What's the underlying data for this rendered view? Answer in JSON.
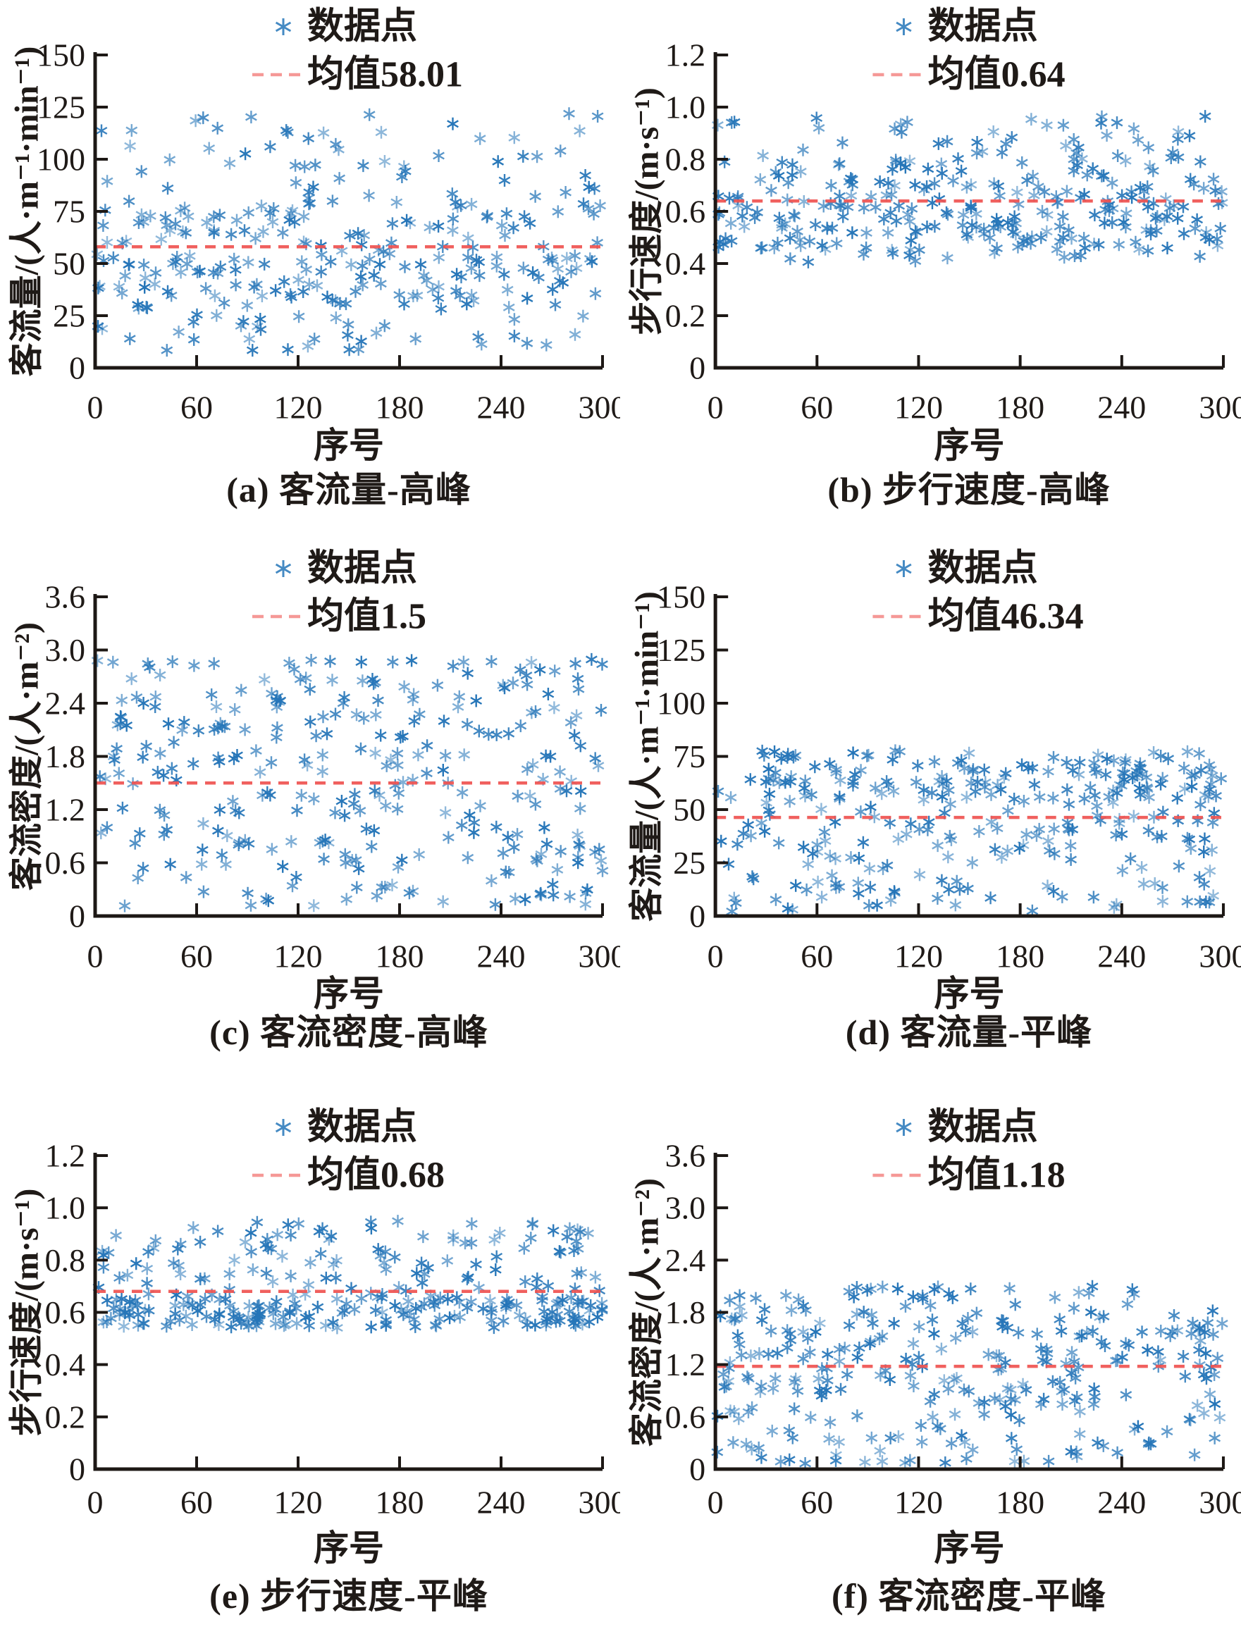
{
  "style": {
    "point_color": "#2575b8",
    "mean_line_color": "#ef5350",
    "axis_color": "#1d1815",
    "text_color": "#1f1a17",
    "background": "#ffffff"
  },
  "chart_data": [
    {
      "id": "a",
      "type": "scatter",
      "caption": "(a) 客流量-高峰",
      "xlabel": "序号",
      "ylabel": "客流量/(人·m⁻¹·min⁻¹)",
      "xlim": [
        0,
        300
      ],
      "ylim": [
        0,
        150
      ],
      "x_ticks": [
        0,
        60,
        120,
        180,
        240,
        300
      ],
      "y_ticks": [
        0,
        25,
        50,
        75,
        100,
        125,
        150
      ],
      "y_tick_labels": [
        "0",
        "25",
        "50",
        "75",
        "100",
        "125",
        "150"
      ],
      "legend": {
        "points_label": "数据点",
        "mean_label": "均值58.01"
      },
      "legend_position": "top-right-inside",
      "grid": false,
      "mean": 58.01,
      "n_points": 300,
      "x_distribution": {
        "kind": "uniform",
        "range": [
          1,
          300
        ]
      },
      "y_distribution_bands": [
        {
          "range": [
            30,
            80
          ],
          "weight": 0.4
        },
        {
          "range": [
            8,
            55
          ],
          "weight": 0.3
        },
        {
          "range": [
            60,
            122
          ],
          "weight": 0.3
        }
      ],
      "seed": 11
    },
    {
      "id": "b",
      "type": "scatter",
      "caption": "(b) 步行速度-高峰",
      "xlabel": "序号",
      "ylabel": "步行速度/(m·s⁻¹)",
      "xlim": [
        0,
        300
      ],
      "ylim": [
        0,
        1.2
      ],
      "x_ticks": [
        0,
        60,
        120,
        180,
        240,
        300
      ],
      "y_ticks": [
        0,
        0.2,
        0.4,
        0.6,
        0.8,
        1.0,
        1.2
      ],
      "y_tick_labels": [
        "0",
        "0.2",
        "0.4",
        "0.6",
        "0.8",
        "1.0",
        "1.2"
      ],
      "legend": {
        "points_label": "数据点",
        "mean_label": "均值0.64"
      },
      "legend_position": "top-right-inside",
      "grid": false,
      "mean": 0.64,
      "n_points": 300,
      "x_distribution": {
        "kind": "uniform",
        "range": [
          1,
          300
        ]
      },
      "y_distribution_bands": [
        {
          "range": [
            0.45,
            0.68
          ],
          "weight": 0.6
        },
        {
          "range": [
            0.68,
            0.85
          ],
          "weight": 0.25
        },
        {
          "range": [
            0.85,
            0.97
          ],
          "weight": 0.1
        },
        {
          "range": [
            0.4,
            0.45
          ],
          "weight": 0.05
        }
      ],
      "seed": 22
    },
    {
      "id": "c",
      "type": "scatter",
      "caption": "(c) 客流密度-高峰",
      "xlabel": "序号",
      "ylabel": "客流密度/(人·m⁻²)",
      "xlim": [
        0,
        300
      ],
      "ylim": [
        0,
        3.6
      ],
      "x_ticks": [
        0,
        60,
        120,
        180,
        240,
        300
      ],
      "y_ticks": [
        0,
        0.6,
        1.2,
        1.8,
        2.4,
        3.0,
        3.6
      ],
      "y_tick_labels": [
        "0",
        "0.6",
        "1.2",
        "1.8",
        "2.4",
        "3.0",
        "3.6"
      ],
      "legend": {
        "points_label": "数据点",
        "mean_label": "均值1.5"
      },
      "legend_position": "top-right-inside",
      "grid": false,
      "mean": 1.5,
      "n_points": 300,
      "x_distribution": {
        "kind": "uniform",
        "range": [
          1,
          300
        ]
      },
      "y_distribution_bands": [
        {
          "range": [
            0.1,
            2.9
          ],
          "weight": 1.0
        }
      ],
      "seed": 33
    },
    {
      "id": "d",
      "type": "scatter",
      "caption": "(d) 客流量-平峰",
      "xlabel": "序号",
      "ylabel": "客流量/(人·m⁻¹·min⁻¹)",
      "xlim": [
        0,
        300
      ],
      "ylim": [
        0,
        150
      ],
      "x_ticks": [
        0,
        60,
        120,
        180,
        240,
        300
      ],
      "y_ticks": [
        0,
        25,
        50,
        75,
        100,
        125,
        150
      ],
      "y_tick_labels": [
        "0",
        "25",
        "50",
        "75",
        "100",
        "125",
        "150"
      ],
      "legend": {
        "points_label": "数据点",
        "mean_label": "均值46.34"
      },
      "legend_position": "top-right-inside",
      "grid": false,
      "mean": 46.34,
      "n_points": 300,
      "x_distribution": {
        "kind": "uniform",
        "range": [
          1,
          300
        ]
      },
      "y_distribution_bands": [
        {
          "range": [
            55,
            78
          ],
          "weight": 0.45
        },
        {
          "range": [
            25,
            55
          ],
          "weight": 0.35
        },
        {
          "range": [
            2,
            25
          ],
          "weight": 0.2
        }
      ],
      "seed": 44
    },
    {
      "id": "e",
      "type": "scatter",
      "caption": "(e) 步行速度-平峰",
      "xlabel": "序号",
      "ylabel": "步行速度/(m·s⁻¹)",
      "xlim": [
        0,
        300
      ],
      "ylim": [
        0,
        1.2
      ],
      "x_ticks": [
        0,
        60,
        120,
        180,
        240,
        300
      ],
      "y_ticks": [
        0,
        0.2,
        0.4,
        0.6,
        0.8,
        1.0,
        1.2
      ],
      "y_tick_labels": [
        "0",
        "0.2",
        "0.4",
        "0.6",
        "0.8",
        "1.0",
        "1.2"
      ],
      "legend": {
        "points_label": "数据点",
        "mean_label": "均值0.68"
      },
      "legend_position": "top-right-inside",
      "grid": false,
      "mean": 0.68,
      "n_points": 300,
      "x_distribution": {
        "kind": "uniform",
        "range": [
          1,
          300
        ]
      },
      "y_distribution_bands": [
        {
          "range": [
            0.54,
            0.66
          ],
          "weight": 0.55
        },
        {
          "range": [
            0.66,
            0.85
          ],
          "weight": 0.3
        },
        {
          "range": [
            0.85,
            0.95
          ],
          "weight": 0.15
        }
      ],
      "seed": 55
    },
    {
      "id": "f",
      "type": "scatter",
      "caption": "(f) 客流密度-平峰",
      "xlabel": "序号",
      "ylabel": "客流密度/(人·m⁻²)",
      "xlim": [
        0,
        300
      ],
      "ylim": [
        0,
        3.6
      ],
      "x_ticks": [
        0,
        60,
        120,
        180,
        240,
        300
      ],
      "y_ticks": [
        0,
        0.6,
        1.2,
        1.8,
        2.4,
        3.0,
        3.6
      ],
      "y_tick_labels": [
        "0",
        "0.6",
        "1.2",
        "1.8",
        "2.4",
        "3.0",
        "3.6"
      ],
      "legend": {
        "points_label": "数据点",
        "mean_label": "均值1.18"
      },
      "legend_position": "top-right-inside",
      "grid": false,
      "mean": 1.18,
      "n_points": 300,
      "x_distribution": {
        "kind": "uniform",
        "range": [
          1,
          300
        ]
      },
      "y_distribution_bands": [
        {
          "range": [
            1.3,
            2.1
          ],
          "weight": 0.48
        },
        {
          "range": [
            0.9,
            1.3
          ],
          "weight": 0.2
        },
        {
          "range": [
            0.05,
            0.9
          ],
          "weight": 0.32
        }
      ],
      "seed": 66
    }
  ]
}
